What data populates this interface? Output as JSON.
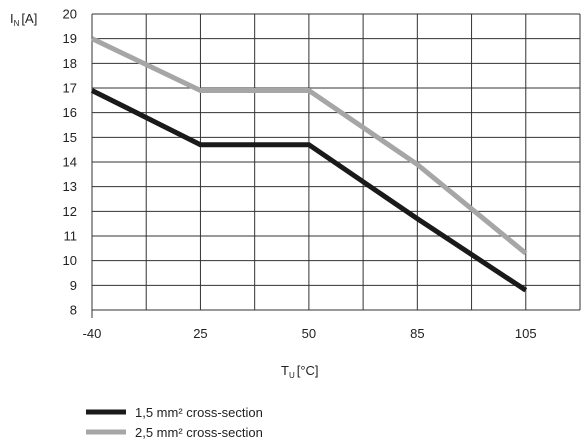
{
  "chart_data": {
    "type": "line",
    "categories": [
      "-40",
      "25",
      "50",
      "85",
      "105"
    ],
    "x": [
      0,
      0.5,
      1,
      1.5,
      2,
      2.5,
      3,
      3.5,
      4
    ],
    "ylim": [
      8,
      20
    ],
    "y_ticks": [
      8,
      9,
      10,
      11,
      12,
      13,
      14,
      15,
      16,
      17,
      18,
      19,
      20
    ],
    "grid": true,
    "legend_position": "bottom-left",
    "ylabel": {
      "main": "I",
      "sub": "N",
      "unit": "[A]"
    },
    "xlabel": {
      "main": "T",
      "sub": "U",
      "unit": "[°C]"
    },
    "series": [
      {
        "name": "1,5 mm² cross-section",
        "color": "#1a1a1a",
        "points": [
          [
            0,
            16.9
          ],
          [
            1,
            14.7
          ],
          [
            2,
            14.7
          ],
          [
            3,
            11.7
          ],
          [
            4,
            8.8
          ]
        ]
      },
      {
        "name": "2,5 mm² cross-section",
        "color": "#a6a6a6",
        "points": [
          [
            0,
            19.0
          ],
          [
            1,
            16.9
          ],
          [
            2,
            16.9
          ],
          [
            3,
            13.9
          ],
          [
            4,
            10.3
          ]
        ]
      }
    ]
  }
}
